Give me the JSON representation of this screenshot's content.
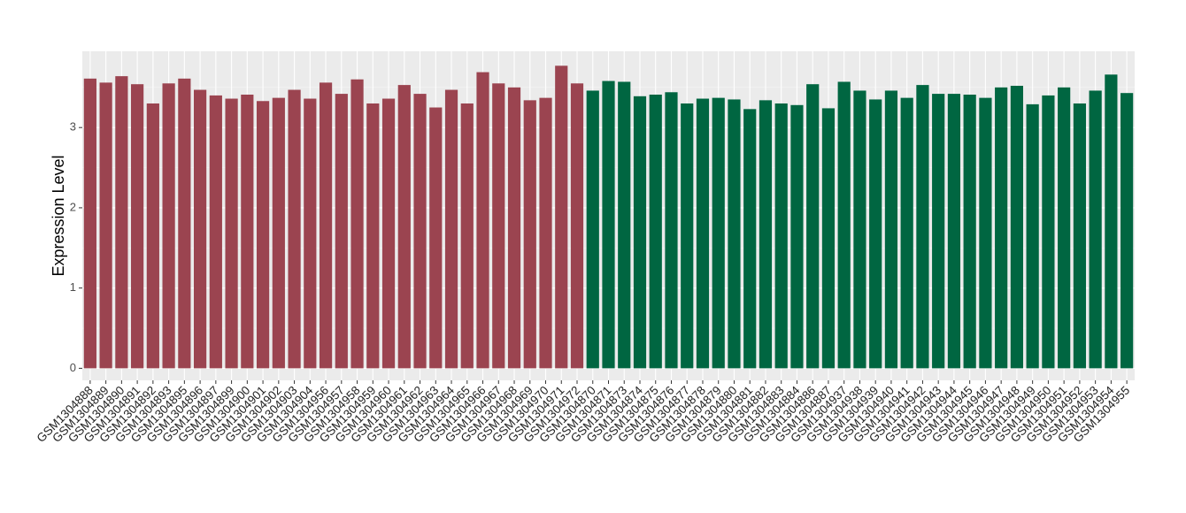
{
  "chart_data": {
    "type": "bar",
    "ylabel": "Expression Level",
    "categories": [
      "GSM1304888",
      "GSM1304889",
      "GSM1304890",
      "GSM1304891",
      "GSM1304892",
      "GSM1304893",
      "GSM1304895",
      "GSM1304896",
      "GSM1304897",
      "GSM1304899",
      "GSM1304900",
      "GSM1304901",
      "GSM1304902",
      "GSM1304903",
      "GSM1304904",
      "GSM1304956",
      "GSM1304957",
      "GSM1304958",
      "GSM1304959",
      "GSM1304960",
      "GSM1304961",
      "GSM1304962",
      "GSM1304963",
      "GSM1304964",
      "GSM1304965",
      "GSM1304966",
      "GSM1304967",
      "GSM1304968",
      "GSM1304969",
      "GSM1304970",
      "GSM1304971",
      "GSM1304972",
      "GSM1304870",
      "GSM1304871",
      "GSM1304873",
      "GSM1304874",
      "GSM1304875",
      "GSM1304876",
      "GSM1304877",
      "GSM1304878",
      "GSM1304879",
      "GSM1304880",
      "GSM1304881",
      "GSM1304882",
      "GSM1304883",
      "GSM1304884",
      "GSM1304886",
      "GSM1304887",
      "GSM1304937",
      "GSM1304938",
      "GSM1304939",
      "GSM1304940",
      "GSM1304941",
      "GSM1304942",
      "GSM1304943",
      "GSM1304944",
      "GSM1304945",
      "GSM1304946",
      "GSM1304947",
      "GSM1304948",
      "GSM1304949",
      "GSM1304950",
      "GSM1304951",
      "GSM1304952",
      "GSM1304953",
      "GSM1304954",
      "GSM1304955"
    ],
    "values": [
      3.61,
      3.56,
      3.64,
      3.54,
      3.3,
      3.55,
      3.61,
      3.47,
      3.4,
      3.36,
      3.41,
      3.33,
      3.37,
      3.47,
      3.36,
      3.56,
      3.42,
      3.6,
      3.3,
      3.36,
      3.53,
      3.42,
      3.25,
      3.47,
      3.3,
      3.69,
      3.55,
      3.5,
      3.34,
      3.37,
      3.77,
      3.55,
      3.46,
      3.58,
      3.57,
      3.39,
      3.41,
      3.44,
      3.3,
      3.36,
      3.37,
      3.35,
      3.23,
      3.34,
      3.3,
      3.28,
      3.54,
      3.24,
      3.57,
      3.46,
      3.35,
      3.46,
      3.37,
      3.53,
      3.42,
      3.42,
      3.41,
      3.37,
      3.5,
      3.52,
      3.29,
      3.4,
      3.5,
      3.3,
      3.46,
      3.66,
      3.43
    ],
    "colors": [
      "#9b4450",
      "#9b4450",
      "#9b4450",
      "#9b4450",
      "#9b4450",
      "#9b4450",
      "#9b4450",
      "#9b4450",
      "#9b4450",
      "#9b4450",
      "#9b4450",
      "#9b4450",
      "#9b4450",
      "#9b4450",
      "#9b4450",
      "#9b4450",
      "#9b4450",
      "#9b4450",
      "#9b4450",
      "#9b4450",
      "#9b4450",
      "#9b4450",
      "#9b4450",
      "#9b4450",
      "#9b4450",
      "#9b4450",
      "#9b4450",
      "#9b4450",
      "#9b4450",
      "#9b4450",
      "#9b4450",
      "#9b4450",
      "#006641",
      "#006641",
      "#006641",
      "#006641",
      "#006641",
      "#006641",
      "#006641",
      "#006641",
      "#006641",
      "#006641",
      "#006641",
      "#006641",
      "#006641",
      "#006641",
      "#006641",
      "#006641",
      "#006641",
      "#006641",
      "#006641",
      "#006641",
      "#006641",
      "#006641",
      "#006641",
      "#006641",
      "#006641",
      "#006641",
      "#006641",
      "#006641",
      "#006641",
      "#006641",
      "#006641",
      "#006641",
      "#006641",
      "#006641",
      "#006641"
    ],
    "ylim": [
      -0.15,
      3.95
    ],
    "yticks": [
      0,
      1,
      2,
      3
    ],
    "grid": true
  }
}
